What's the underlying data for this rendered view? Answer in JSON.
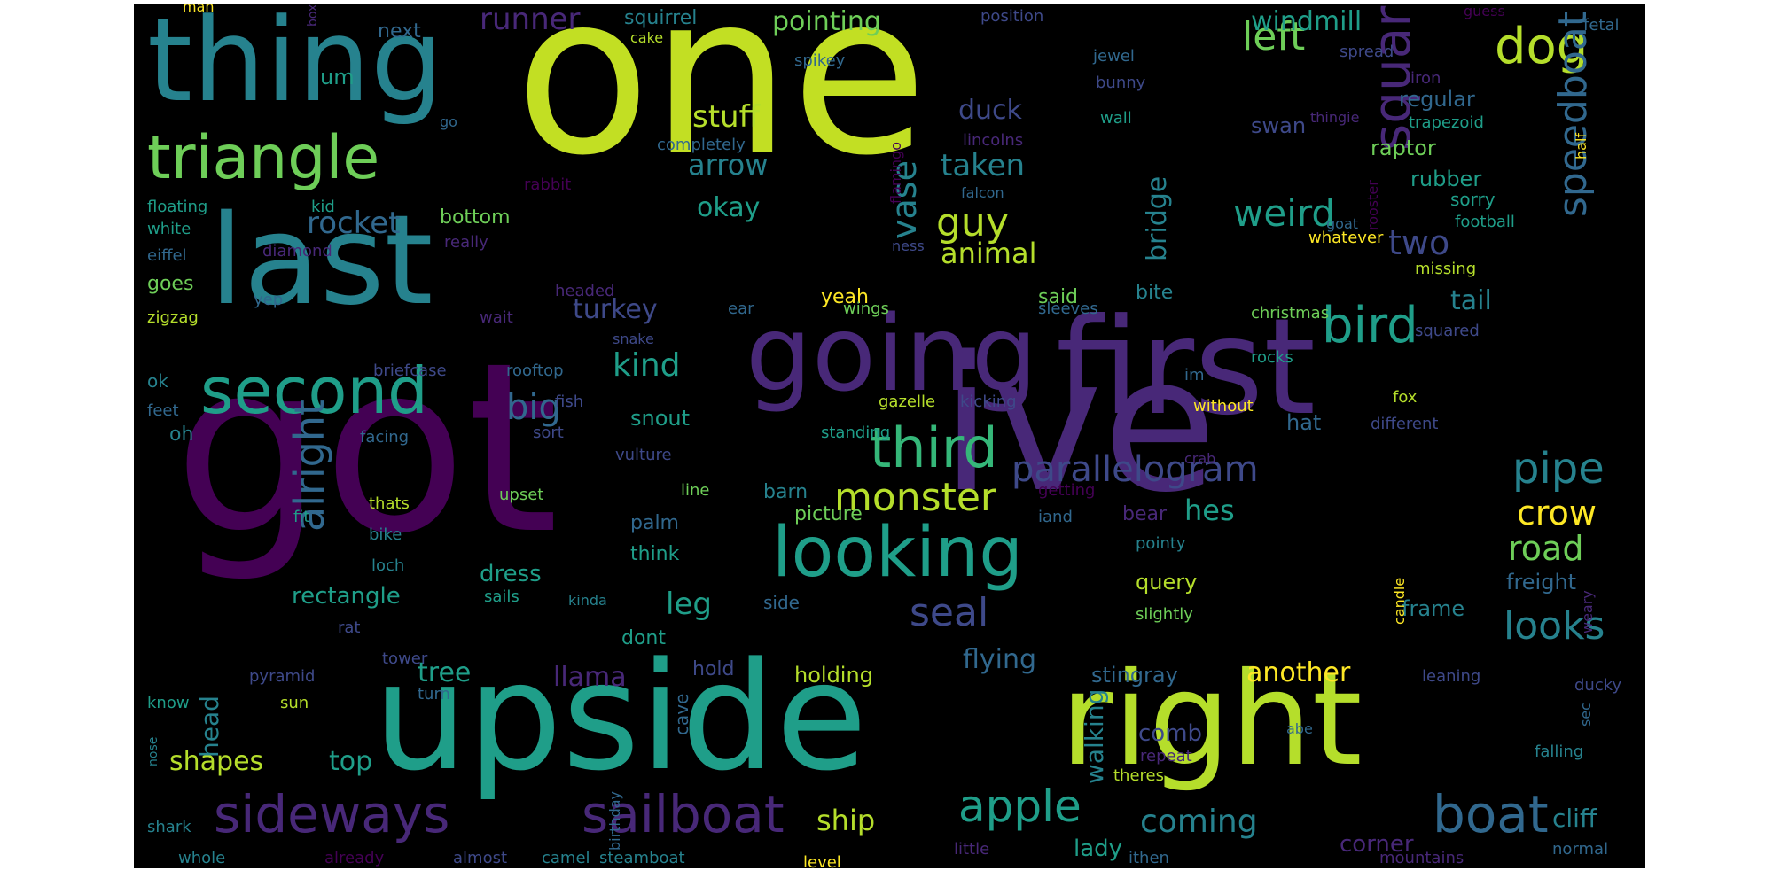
{
  "palette": {
    "c1": "#440154",
    "c2": "#482878",
    "c3": "#3e4989",
    "c4": "#31688e",
    "c5": "#26828e",
    "c6": "#1f9e89",
    "c7": "#35b779",
    "c8": "#6ece58",
    "c9": "#b5de2b",
    "c10": "#fde725",
    "c11": "#c2df23"
  },
  "words": [
    {
      "text": "one",
      "c": "c11",
      "s": 250
    },
    {
      "text": "got",
      "c": "c1",
      "s": 265
    },
    {
      "text": "ive",
      "c": "c2",
      "s": 210
    },
    {
      "text": "upside",
      "c": "c6",
      "s": 168
    },
    {
      "text": "right",
      "c": "c9",
      "s": 145
    },
    {
      "text": "first",
      "c": "c2",
      "s": 150
    },
    {
      "text": "going",
      "c": "c2",
      "s": 118
    },
    {
      "text": "last",
      "c": "c5",
      "s": 140
    },
    {
      "text": "thing",
      "c": "c5",
      "s": 130
    },
    {
      "text": "looking",
      "c": "c6",
      "s": 78
    },
    {
      "text": "sideways",
      "c": "c2",
      "s": 58
    },
    {
      "text": "sailboat",
      "c": "c2",
      "s": 58
    },
    {
      "text": "triangle",
      "c": "c8",
      "s": 68
    },
    {
      "text": "second",
      "c": "c6",
      "s": 72
    },
    {
      "text": "square",
      "c": "c2",
      "s": 58
    },
    {
      "text": "dog",
      "c": "c9",
      "s": 56
    },
    {
      "text": "bird",
      "c": "c6",
      "s": 56
    },
    {
      "text": "third",
      "c": "c7",
      "s": 62
    },
    {
      "text": "boat",
      "c": "c4",
      "s": 58
    },
    {
      "text": "apple",
      "c": "c6",
      "s": 50
    },
    {
      "text": "monster",
      "c": "c9",
      "s": 44
    },
    {
      "text": "parallelogram",
      "c": "c3",
      "s": 40
    },
    {
      "text": "pipe",
      "c": "c5",
      "s": 48
    },
    {
      "text": "speedboat",
      "c": "c4",
      "s": 44
    },
    {
      "text": "alright",
      "c": "c4",
      "s": 46
    },
    {
      "text": "looks",
      "c": "c5",
      "s": 44
    },
    {
      "text": "left",
      "c": "c8",
      "s": 44
    },
    {
      "text": "weird",
      "c": "c6",
      "s": 42
    },
    {
      "text": "crow",
      "c": "c10",
      "s": 38
    },
    {
      "text": "road",
      "c": "c8",
      "s": 38
    },
    {
      "text": "guy",
      "c": "c9",
      "s": 44
    },
    {
      "text": "seal",
      "c": "c3",
      "s": 44
    },
    {
      "text": "coming",
      "c": "c5",
      "s": 36
    },
    {
      "text": "big",
      "c": "c4",
      "s": 40
    },
    {
      "text": "two",
      "c": "c3",
      "s": 38
    },
    {
      "text": "vase",
      "c": "c5",
      "s": 38
    },
    {
      "text": "stuff",
      "c": "c9",
      "s": 34
    },
    {
      "text": "kind",
      "c": "c6",
      "s": 36
    },
    {
      "text": "rocket",
      "c": "c4",
      "s": 34
    },
    {
      "text": "runner",
      "c": "c2",
      "s": 34
    },
    {
      "text": "pointing",
      "c": "c8",
      "s": 30
    },
    {
      "text": "windmill",
      "c": "c6",
      "s": 30
    },
    {
      "text": "arrow",
      "c": "c5",
      "s": 32
    },
    {
      "text": "taken",
      "c": "c5",
      "s": 34
    },
    {
      "text": "animal",
      "c": "c9",
      "s": 32
    },
    {
      "text": "okay",
      "c": "c6",
      "s": 30
    },
    {
      "text": "turkey",
      "c": "c3",
      "s": 30
    },
    {
      "text": "duck",
      "c": "c3",
      "s": 30
    },
    {
      "text": "ship",
      "c": "c9",
      "s": 32
    },
    {
      "text": "leg",
      "c": "c6",
      "s": 34
    },
    {
      "text": "flying",
      "c": "c4",
      "s": 30
    },
    {
      "text": "llama",
      "c": "c2",
      "s": 30
    },
    {
      "text": "tree",
      "c": "c6",
      "s": 30
    },
    {
      "text": "another",
      "c": "c10",
      "s": 30
    },
    {
      "text": "hes",
      "c": "c6",
      "s": 32
    },
    {
      "text": "tail",
      "c": "c5",
      "s": 30
    },
    {
      "text": "bridge",
      "c": "c5",
      "s": 30
    },
    {
      "text": "shapes",
      "c": "c9",
      "s": 30
    },
    {
      "text": "top",
      "c": "c6",
      "s": 30
    },
    {
      "text": "head",
      "c": "c5",
      "s": 28
    },
    {
      "text": "walking",
      "c": "c5",
      "s": 28
    },
    {
      "text": "cliff",
      "c": "c5",
      "s": 28
    },
    {
      "text": "rectangle",
      "c": "c6",
      "s": 26
    },
    {
      "text": "dress",
      "c": "c6",
      "s": 26
    },
    {
      "text": "comb",
      "c": "c3",
      "s": 26
    },
    {
      "text": "holding",
      "c": "c9",
      "s": 24
    },
    {
      "text": "lady",
      "c": "c6",
      "s": 26
    },
    {
      "text": "corner",
      "c": "c2",
      "s": 26
    },
    {
      "text": "raptor",
      "c": "c8",
      "s": 24
    },
    {
      "text": "rubber",
      "c": "c6",
      "s": 24
    },
    {
      "text": "regular",
      "c": "c4",
      "s": 24
    },
    {
      "text": "swan",
      "c": "c3",
      "s": 24
    },
    {
      "text": "freight",
      "c": "c4",
      "s": 24
    },
    {
      "text": "frame",
      "c": "c5",
      "s": 24
    },
    {
      "text": "hat",
      "c": "c4",
      "s": 24
    },
    {
      "text": "stingray",
      "c": "c4",
      "s": 24
    },
    {
      "text": "query",
      "c": "c9",
      "s": 24
    },
    {
      "text": "bear",
      "c": "c2",
      "s": 22
    },
    {
      "text": "snout",
      "c": "c6",
      "s": 24
    },
    {
      "text": "palm",
      "c": "c4",
      "s": 22
    },
    {
      "text": "think",
      "c": "c6",
      "s": 22
    },
    {
      "text": "picture",
      "c": "c8",
      "s": 22
    },
    {
      "text": "barn",
      "c": "c5",
      "s": 22
    },
    {
      "text": "said",
      "c": "c8",
      "s": 22
    },
    {
      "text": "bite",
      "c": "c5",
      "s": 22
    },
    {
      "text": "yeah",
      "c": "c10",
      "s": 22
    },
    {
      "text": "bottom",
      "c": "c8",
      "s": 22
    },
    {
      "text": "goes",
      "c": "c8",
      "s": 22
    },
    {
      "text": "um",
      "c": "c6",
      "s": 24
    },
    {
      "text": "next",
      "c": "c4",
      "s": 22
    },
    {
      "text": "squirrel",
      "c": "c5",
      "s": 22
    },
    {
      "text": "ok",
      "c": "c5",
      "s": 20
    },
    {
      "text": "oh",
      "c": "c5",
      "s": 22
    },
    {
      "text": "dont",
      "c": "c6",
      "s": 22
    },
    {
      "text": "hold",
      "c": "c3",
      "s": 22
    },
    {
      "text": "cave",
      "c": "c4",
      "s": 20
    },
    {
      "text": "sorry",
      "c": "c6",
      "s": 20
    },
    {
      "text": "football",
      "c": "c6",
      "s": 18
    },
    {
      "text": "whatever",
      "c": "c10",
      "s": 18
    },
    {
      "text": "missing",
      "c": "c9",
      "s": 18
    },
    {
      "text": "christmas",
      "c": "c8",
      "s": 18
    },
    {
      "text": "squared",
      "c": "c3",
      "s": 18
    },
    {
      "text": "rocks",
      "c": "c6",
      "s": 18
    },
    {
      "text": "without",
      "c": "c10",
      "s": 18
    },
    {
      "text": "fox",
      "c": "c9",
      "s": 18
    },
    {
      "text": "different",
      "c": "c3",
      "s": 18
    },
    {
      "text": "im",
      "c": "c4",
      "s": 18
    },
    {
      "text": "crab",
      "c": "c2",
      "s": 16
    },
    {
      "text": "pointy",
      "c": "c5",
      "s": 18
    },
    {
      "text": "slightly",
      "c": "c8",
      "s": 18
    },
    {
      "text": "side",
      "c": "c4",
      "s": 20
    },
    {
      "text": "kinda",
      "c": "c5",
      "s": 16
    },
    {
      "text": "sails",
      "c": "c6",
      "s": 18
    },
    {
      "text": "upset",
      "c": "c8",
      "s": 18
    },
    {
      "text": "line",
      "c": "c8",
      "s": 18
    },
    {
      "text": "iand",
      "c": "c4",
      "s": 18
    },
    {
      "text": "getting",
      "c": "c1",
      "s": 18
    },
    {
      "text": "standing",
      "c": "c6",
      "s": 18
    },
    {
      "text": "kicking",
      "c": "c3",
      "s": 18
    },
    {
      "text": "gazelle",
      "c": "c9",
      "s": 18
    },
    {
      "text": "rooftop",
      "c": "c4",
      "s": 18
    },
    {
      "text": "fish",
      "c": "c3",
      "s": 18
    },
    {
      "text": "briefcase",
      "c": "c3",
      "s": 18
    },
    {
      "text": "facing",
      "c": "c4",
      "s": 18
    },
    {
      "text": "sort",
      "c": "c3",
      "s": 18
    },
    {
      "text": "vulture",
      "c": "c3",
      "s": 18
    },
    {
      "text": "wait",
      "c": "c2",
      "s": 18
    },
    {
      "text": "snake",
      "c": "c3",
      "s": 16
    },
    {
      "text": "sleeves",
      "c": "c4",
      "s": 18
    },
    {
      "text": "ear",
      "c": "c4",
      "s": 18
    },
    {
      "text": "wings",
      "c": "c8",
      "s": 18
    },
    {
      "text": "headed",
      "c": "c2",
      "s": 18
    },
    {
      "text": "floating",
      "c": "c6",
      "s": 18
    },
    {
      "text": "white",
      "c": "c6",
      "s": 18
    },
    {
      "text": "eiffel",
      "c": "c4",
      "s": 18
    },
    {
      "text": "zigzag",
      "c": "c9",
      "s": 18
    },
    {
      "text": "diamond",
      "c": "c2",
      "s": 18
    },
    {
      "text": "yep",
      "c": "c4",
      "s": 18
    },
    {
      "text": "feet",
      "c": "c4",
      "s": 18
    },
    {
      "text": "kid",
      "c": "c6",
      "s": 18
    },
    {
      "text": "really",
      "c": "c2",
      "s": 18
    },
    {
      "text": "rabbit",
      "c": "c1",
      "s": 18
    },
    {
      "text": "completely",
      "c": "c4",
      "s": 18
    },
    {
      "text": "flamingo",
      "c": "c1",
      "s": 16
    },
    {
      "text": "falcon",
      "c": "c4",
      "s": 16
    },
    {
      "text": "lincolns",
      "c": "c2",
      "s": 18
    },
    {
      "text": "ness",
      "c": "c3",
      "s": 16
    },
    {
      "text": "go",
      "c": "c4",
      "s": 16
    },
    {
      "text": "cake",
      "c": "c9",
      "s": 16
    },
    {
      "text": "box",
      "c": "c2",
      "s": 14
    },
    {
      "text": "man",
      "c": "c10",
      "s": 16
    },
    {
      "text": "position",
      "c": "c3",
      "s": 18
    },
    {
      "text": "jewel",
      "c": "c4",
      "s": 18
    },
    {
      "text": "spikey",
      "c": "c4",
      "s": 18
    },
    {
      "text": "bunny",
      "c": "c3",
      "s": 18
    },
    {
      "text": "wall",
      "c": "c6",
      "s": 18
    },
    {
      "text": "spread",
      "c": "c3",
      "s": 18
    },
    {
      "text": "iron",
      "c": "c2",
      "s": 18
    },
    {
      "text": "thingie",
      "c": "c2",
      "s": 16
    },
    {
      "text": "trapezoid",
      "c": "c6",
      "s": 18
    },
    {
      "text": "guess",
      "c": "c1",
      "s": 16
    },
    {
      "text": "fetal",
      "c": "c4",
      "s": 18
    },
    {
      "text": "half",
      "c": "c10",
      "s": 16
    },
    {
      "text": "rooster",
      "c": "c1",
      "s": 16
    },
    {
      "text": "goat",
      "c": "c4",
      "s": 16
    },
    {
      "text": "loch",
      "c": "c5",
      "s": 18
    },
    {
      "text": "rat",
      "c": "c3",
      "s": 18
    },
    {
      "text": "tower",
      "c": "c3",
      "s": 18
    },
    {
      "text": "bike",
      "c": "c5",
      "s": 18
    },
    {
      "text": "thats",
      "c": "c9",
      "s": 18
    },
    {
      "text": "fit",
      "c": "c6",
      "s": 18
    },
    {
      "text": "pyramid",
      "c": "c3",
      "s": 18
    },
    {
      "text": "sun",
      "c": "c9",
      "s": 18
    },
    {
      "text": "turn",
      "c": "c4",
      "s": 18
    },
    {
      "text": "know",
      "c": "c6",
      "s": 18
    },
    {
      "text": "nose",
      "c": "c5",
      "s": 14
    },
    {
      "text": "shark",
      "c": "c5",
      "s": 18
    },
    {
      "text": "whole",
      "c": "c5",
      "s": 18
    },
    {
      "text": "already",
      "c": "c1",
      "s": 18
    },
    {
      "text": "almost",
      "c": "c3",
      "s": 18
    },
    {
      "text": "camel",
      "c": "c5",
      "s": 18
    },
    {
      "text": "steamboat",
      "c": "c5",
      "s": 18
    },
    {
      "text": "birthday",
      "c": "c4",
      "s": 16
    },
    {
      "text": "level",
      "c": "c10",
      "s": 18
    },
    {
      "text": "little",
      "c": "c2",
      "s": 18
    },
    {
      "text": "ithen",
      "c": "c4",
      "s": 18
    },
    {
      "text": "mountains",
      "c": "c2",
      "s": 18
    },
    {
      "text": "normal",
      "c": "c4",
      "s": 18
    },
    {
      "text": "theres",
      "c": "c9",
      "s": 18
    },
    {
      "text": "repeat",
      "c": "c2",
      "s": 18
    },
    {
      "text": "falling",
      "c": "c5",
      "s": 18
    },
    {
      "text": "sec",
      "c": "c4",
      "s": 16
    },
    {
      "text": "ducky",
      "c": "c3",
      "s": 18
    },
    {
      "text": "weary",
      "c": "c2",
      "s": 16
    },
    {
      "text": "leaning",
      "c": "c3",
      "s": 18
    },
    {
      "text": "abe",
      "c": "c4",
      "s": 16
    },
    {
      "text": "candle",
      "c": "c10",
      "s": 16
    }
  ]
}
